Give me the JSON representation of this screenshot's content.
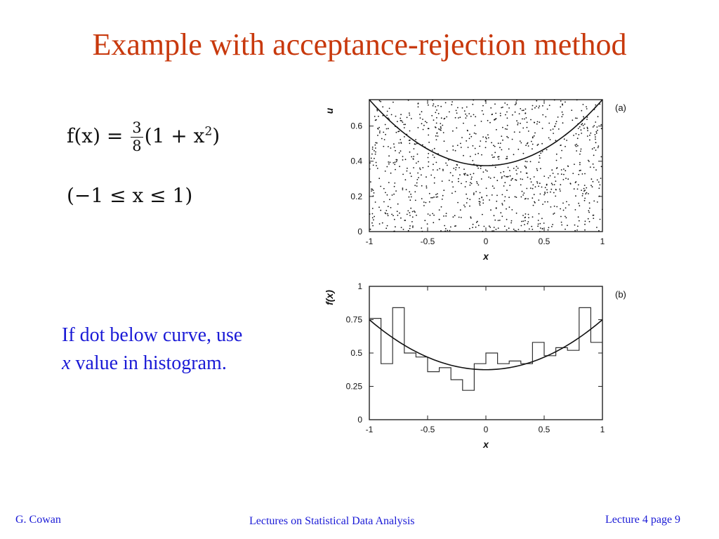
{
  "slide": {
    "title": "Example with acceptance-rejection method",
    "formula": {
      "lhs": "f(x) =",
      "frac_num": "3",
      "frac_den": "8",
      "rhs_open": "(1 + x",
      "rhs_exp": "2",
      "rhs_close": ")",
      "range_text": "(−1 ≤ x ≤ 1)"
    },
    "note_line1": "If dot below curve, use",
    "note_line2_var": "x",
    "note_line2_rest": " value in histogram.",
    "footer": {
      "left": "G. Cowan",
      "center": "Lectures on Statistical Data Analysis",
      "right": "Lecture 4  page 9"
    }
  },
  "chart_data": [
    {
      "type": "scatter",
      "panel_label": "(a)",
      "xlabel": "x",
      "ylabel": "u",
      "xlim": [
        -1,
        1
      ],
      "ylim": [
        0,
        0.75
      ],
      "x_ticks": [
        "-1",
        "-0.5",
        "0",
        "0.5",
        "1"
      ],
      "y_ticks": [
        "0",
        "0.2",
        "0.4",
        "0.6"
      ],
      "curve": "f(x) = 3/8 (1 + x^2)",
      "n_points_approx": 1000,
      "grid": false
    },
    {
      "type": "bar",
      "panel_label": "(b)",
      "xlabel": "x",
      "ylabel": "f(x)",
      "xlim": [
        -1,
        1
      ],
      "ylim": [
        0,
        1
      ],
      "x_ticks": [
        "-1",
        "-0.5",
        "0",
        "0.5",
        "1"
      ],
      "y_ticks": [
        "0",
        "0.25",
        "0.5",
        "0.75",
        "1"
      ],
      "bin_edges": [
        -1,
        -0.9,
        -0.8,
        -0.7,
        -0.6,
        -0.5,
        -0.4,
        -0.3,
        -0.2,
        -0.1,
        0,
        0.1,
        0.2,
        0.3,
        0.4,
        0.5,
        0.6,
        0.7,
        0.8,
        0.9,
        1
      ],
      "values": [
        0.76,
        0.42,
        0.84,
        0.5,
        0.47,
        0.36,
        0.39,
        0.3,
        0.22,
        0.42,
        0.5,
        0.42,
        0.44,
        0.42,
        0.58,
        0.48,
        0.54,
        0.52,
        0.84,
        0.58
      ],
      "curve": "f(x) = 3/8 (1 + x^2)",
      "grid": false
    }
  ]
}
